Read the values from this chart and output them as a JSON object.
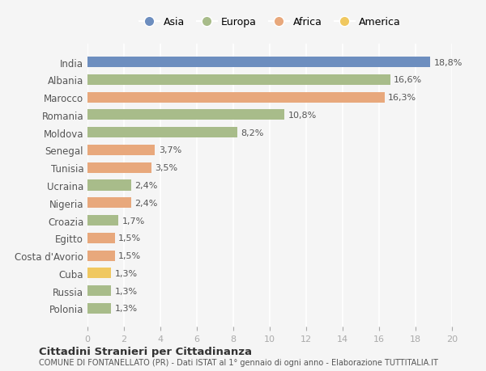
{
  "countries": [
    "India",
    "Albania",
    "Marocco",
    "Romania",
    "Moldova",
    "Senegal",
    "Tunisia",
    "Ucraina",
    "Nigeria",
    "Croazia",
    "Egitto",
    "Costa d'Avorio",
    "Cuba",
    "Russia",
    "Polonia"
  ],
  "values": [
    18.8,
    16.6,
    16.3,
    10.8,
    8.2,
    3.7,
    3.5,
    2.4,
    2.4,
    1.7,
    1.5,
    1.5,
    1.3,
    1.3,
    1.3
  ],
  "labels": [
    "18,8%",
    "16,6%",
    "16,3%",
    "10,8%",
    "8,2%",
    "3,7%",
    "3,5%",
    "2,4%",
    "2,4%",
    "1,7%",
    "1,5%",
    "1,5%",
    "1,3%",
    "1,3%",
    "1,3%"
  ],
  "continents": [
    "Asia",
    "Europa",
    "Africa",
    "Europa",
    "Europa",
    "Africa",
    "Africa",
    "Europa",
    "Africa",
    "Europa",
    "Africa",
    "Africa",
    "America",
    "Europa",
    "Europa"
  ],
  "colors": {
    "Asia": "#6d8ebf",
    "Europa": "#a8bc8a",
    "Africa": "#e8a87c",
    "America": "#f0c860"
  },
  "legend_order": [
    "Asia",
    "Europa",
    "Africa",
    "America"
  ],
  "title1": "Cittadini Stranieri per Cittadinanza",
  "title2": "COMUNE DI FONTANELLATO (PR) - Dati ISTAT al 1° gennaio di ogni anno - Elaborazione TUTTITALIA.IT",
  "xlim": [
    0,
    20
  ],
  "xticks": [
    0,
    2,
    4,
    6,
    8,
    10,
    12,
    14,
    16,
    18,
    20
  ],
  "background_color": "#f5f5f5",
  "grid_color": "#ffffff"
}
